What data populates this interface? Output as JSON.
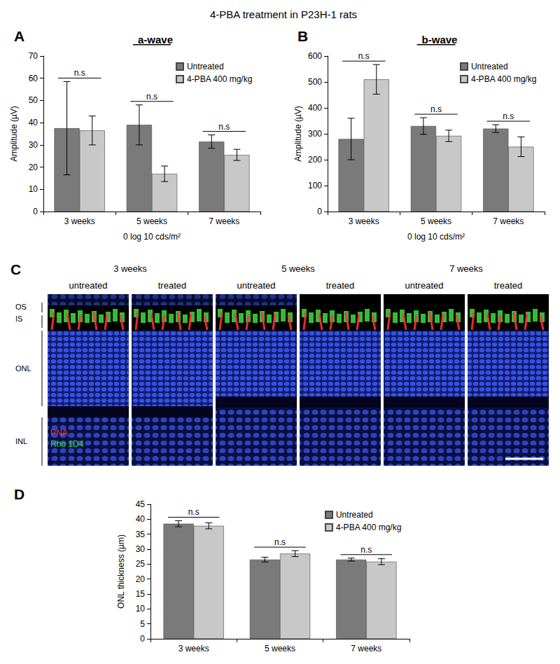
{
  "title": "4-PBA treatment in P23H-1 rats",
  "chart_data": [
    {
      "type": "bar",
      "panel": "A",
      "title": "a-wave",
      "x_label": "0 log 10 cds/m²",
      "y_label": "Amplitude (µV)",
      "categories": [
        "3 weeks",
        "5 weeks",
        "7 weeks"
      ],
      "series": [
        {
          "name": "Untreated",
          "color": "#7a7a7a",
          "values": [
            37.5,
            39,
            31.5
          ],
          "errors": [
            21,
            9,
            3
          ]
        },
        {
          "name": "4-PBA 400 mg/kg",
          "color": "#c8c8c8",
          "values": [
            36.5,
            17,
            25.5
          ],
          "errors": [
            6.5,
            3.5,
            2.5
          ]
        }
      ],
      "annotations": [
        "n.s",
        "n.s",
        "n.s"
      ],
      "ylim": [
        0,
        70
      ],
      "yticks": [
        0,
        10,
        20,
        30,
        40,
        50,
        60,
        70
      ],
      "grid": false,
      "legend": "upper right"
    },
    {
      "type": "bar",
      "panel": "B",
      "title": "b-wave",
      "x_label": "0 log 10 cds/m²",
      "y_label": "Amplitude (µV)",
      "categories": [
        "3 weeks",
        "5 weeks",
        "7 weeks"
      ],
      "series": [
        {
          "name": "Untreated",
          "color": "#7a7a7a",
          "values": [
            280,
            330,
            320
          ],
          "errors": [
            80,
            32,
            15
          ]
        },
        {
          "name": "4-PBA 400 mg/kg",
          "color": "#c8c8c8",
          "values": [
            510,
            292,
            250
          ],
          "errors": [
            57,
            22,
            38
          ]
        }
      ],
      "annotations": [
        "n.s",
        "n.s",
        "n.s"
      ],
      "ylim": [
        0,
        600
      ],
      "yticks": [
        0,
        100,
        200,
        300,
        400,
        500,
        600
      ],
      "grid": false,
      "legend": "upper right"
    },
    {
      "type": "bar",
      "panel": "D",
      "y_label": "ONL thickness (µm)",
      "categories": [
        "3 weeks",
        "5 weeks",
        "7 weeks"
      ],
      "series": [
        {
          "name": "Untreated",
          "color": "#7a7a7a",
          "values": [
            38.5,
            26.5,
            26.5
          ],
          "errors": [
            1,
            0.8,
            0.5
          ]
        },
        {
          "name": "4-PBA 400 mg/kg",
          "color": "#c8c8c8",
          "values": [
            37.8,
            28.5,
            25.8
          ],
          "errors": [
            1,
            1,
            1
          ]
        }
      ],
      "annotations": [
        "n.s",
        "n.s",
        "n.s"
      ],
      "ylim": [
        0,
        45
      ],
      "yticks": [
        0,
        5,
        10,
        15,
        20,
        25,
        30,
        35,
        40,
        45
      ],
      "grid": false,
      "legend": "upper right"
    }
  ],
  "image_panel": {
    "panel": "C",
    "ages": [
      "3 weeks",
      "5 weeks",
      "7 weeks"
    ],
    "conditions": [
      "untreated",
      "treated"
    ],
    "layers": [
      "OS",
      "IS",
      "ONL",
      "INL"
    ],
    "stains": [
      {
        "name": "PNA",
        "color": "#ff3030"
      },
      {
        "name": "Rho 1D4",
        "color": "#33dd33"
      }
    ]
  }
}
